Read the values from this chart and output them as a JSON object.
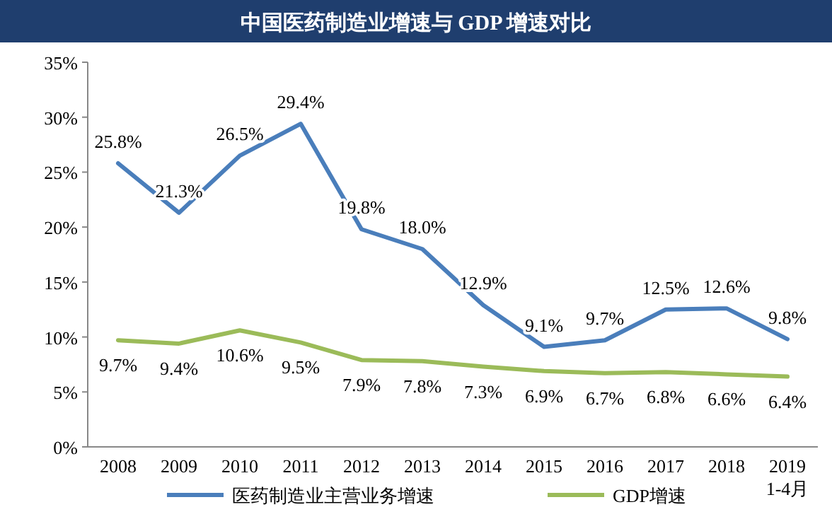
{
  "chart_data": {
    "type": "line",
    "title": "中国医药制造业增速与 GDP 增速对比",
    "categories": [
      "2008",
      "2009",
      "2010",
      "2011",
      "2012",
      "2013",
      "2014",
      "2015",
      "2016",
      "2017",
      "2018",
      "2019\n1-4月"
    ],
    "series": [
      {
        "name": "医药制造业主营业务增速",
        "color": "#4a7ebb",
        "values": [
          25.8,
          21.3,
          26.5,
          29.4,
          19.8,
          18.0,
          12.9,
          9.1,
          9.7,
          12.5,
          12.6,
          9.8
        ],
        "value_labels": [
          "25.8%",
          "21.3%",
          "26.5%",
          "29.4%",
          "19.8%",
          "18.0%",
          "12.9%",
          "9.1%",
          "9.7%",
          "12.5%",
          "12.6%",
          "9.8%"
        ]
      },
      {
        "name": "GDP增速",
        "color": "#9bbb59",
        "values": [
          9.7,
          9.4,
          10.6,
          9.5,
          7.9,
          7.8,
          7.3,
          6.9,
          6.7,
          6.8,
          6.6,
          6.4
        ],
        "value_labels": [
          "9.7%",
          "9.4%",
          "10.6%",
          "9.5%",
          "7.9%",
          "7.8%",
          "7.3%",
          "6.9%",
          "6.7%",
          "6.8%",
          "6.6%",
          "6.4%"
        ]
      }
    ],
    "ylim": [
      0,
      35
    ],
    "yticks": [
      {
        "value": 0,
        "label": "0%"
      },
      {
        "value": 5,
        "label": "5%"
      },
      {
        "value": 10,
        "label": "10%"
      },
      {
        "value": 15,
        "label": "15%"
      },
      {
        "value": 20,
        "label": "20%"
      },
      {
        "value": 25,
        "label": "25%"
      },
      {
        "value": 30,
        "label": "30%"
      },
      {
        "value": 35,
        "label": "35%"
      }
    ],
    "grid": false,
    "legend": "bottom",
    "marker": "none",
    "line_style": "solid"
  }
}
